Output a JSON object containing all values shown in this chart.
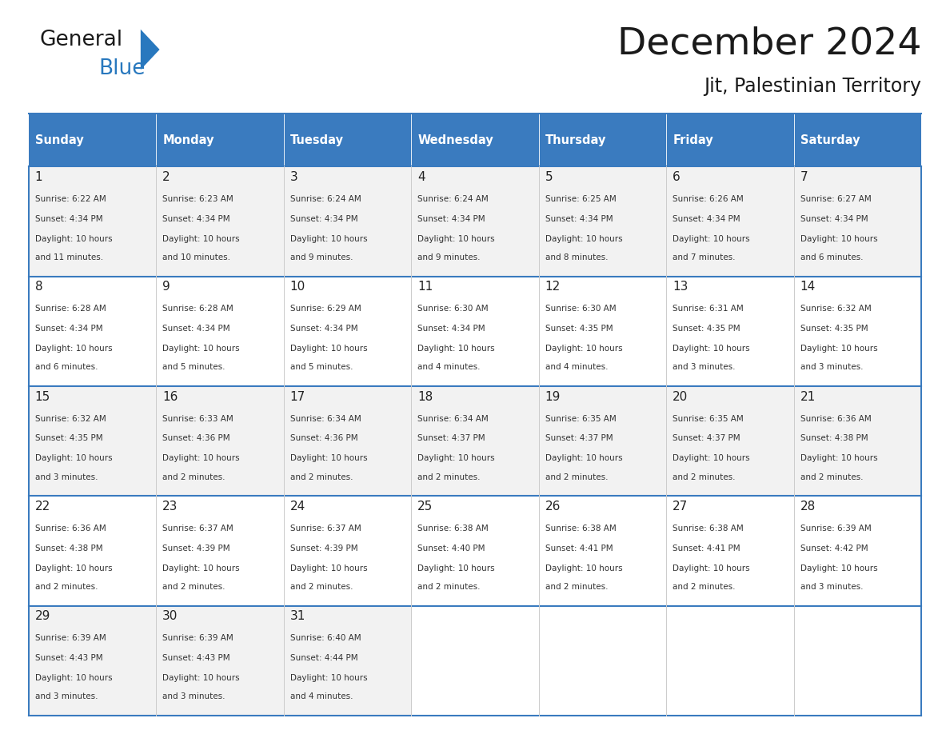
{
  "title": "December 2024",
  "subtitle": "Jit, Palestinian Territory",
  "header_color": "#3A7BBF",
  "header_text_color": "#FFFFFF",
  "cell_bg_color": "#F2F2F2",
  "alt_cell_bg_color": "#FFFFFF",
  "border_color": "#3A7BBF",
  "title_color": "#1a1a1a",
  "subtitle_color": "#1a1a1a",
  "text_color": "#333333",
  "day_number_color": "#222222",
  "day_names": [
    "Sunday",
    "Monday",
    "Tuesday",
    "Wednesday",
    "Thursday",
    "Friday",
    "Saturday"
  ],
  "days": [
    {
      "day": 1,
      "col": 0,
      "row": 0,
      "sunrise": "6:22 AM",
      "sunset": "4:34 PM",
      "daylight": "10 hours and 11 minutes."
    },
    {
      "day": 2,
      "col": 1,
      "row": 0,
      "sunrise": "6:23 AM",
      "sunset": "4:34 PM",
      "daylight": "10 hours and 10 minutes."
    },
    {
      "day": 3,
      "col": 2,
      "row": 0,
      "sunrise": "6:24 AM",
      "sunset": "4:34 PM",
      "daylight": "10 hours and 9 minutes."
    },
    {
      "day": 4,
      "col": 3,
      "row": 0,
      "sunrise": "6:24 AM",
      "sunset": "4:34 PM",
      "daylight": "10 hours and 9 minutes."
    },
    {
      "day": 5,
      "col": 4,
      "row": 0,
      "sunrise": "6:25 AM",
      "sunset": "4:34 PM",
      "daylight": "10 hours and 8 minutes."
    },
    {
      "day": 6,
      "col": 5,
      "row": 0,
      "sunrise": "6:26 AM",
      "sunset": "4:34 PM",
      "daylight": "10 hours and 7 minutes."
    },
    {
      "day": 7,
      "col": 6,
      "row": 0,
      "sunrise": "6:27 AM",
      "sunset": "4:34 PM",
      "daylight": "10 hours and 6 minutes."
    },
    {
      "day": 8,
      "col": 0,
      "row": 1,
      "sunrise": "6:28 AM",
      "sunset": "4:34 PM",
      "daylight": "10 hours and 6 minutes."
    },
    {
      "day": 9,
      "col": 1,
      "row": 1,
      "sunrise": "6:28 AM",
      "sunset": "4:34 PM",
      "daylight": "10 hours and 5 minutes."
    },
    {
      "day": 10,
      "col": 2,
      "row": 1,
      "sunrise": "6:29 AM",
      "sunset": "4:34 PM",
      "daylight": "10 hours and 5 minutes."
    },
    {
      "day": 11,
      "col": 3,
      "row": 1,
      "sunrise": "6:30 AM",
      "sunset": "4:34 PM",
      "daylight": "10 hours and 4 minutes."
    },
    {
      "day": 12,
      "col": 4,
      "row": 1,
      "sunrise": "6:30 AM",
      "sunset": "4:35 PM",
      "daylight": "10 hours and 4 minutes."
    },
    {
      "day": 13,
      "col": 5,
      "row": 1,
      "sunrise": "6:31 AM",
      "sunset": "4:35 PM",
      "daylight": "10 hours and 3 minutes."
    },
    {
      "day": 14,
      "col": 6,
      "row": 1,
      "sunrise": "6:32 AM",
      "sunset": "4:35 PM",
      "daylight": "10 hours and 3 minutes."
    },
    {
      "day": 15,
      "col": 0,
      "row": 2,
      "sunrise": "6:32 AM",
      "sunset": "4:35 PM",
      "daylight": "10 hours and 3 minutes."
    },
    {
      "day": 16,
      "col": 1,
      "row": 2,
      "sunrise": "6:33 AM",
      "sunset": "4:36 PM",
      "daylight": "10 hours and 2 minutes."
    },
    {
      "day": 17,
      "col": 2,
      "row": 2,
      "sunrise": "6:34 AM",
      "sunset": "4:36 PM",
      "daylight": "10 hours and 2 minutes."
    },
    {
      "day": 18,
      "col": 3,
      "row": 2,
      "sunrise": "6:34 AM",
      "sunset": "4:37 PM",
      "daylight": "10 hours and 2 minutes."
    },
    {
      "day": 19,
      "col": 4,
      "row": 2,
      "sunrise": "6:35 AM",
      "sunset": "4:37 PM",
      "daylight": "10 hours and 2 minutes."
    },
    {
      "day": 20,
      "col": 5,
      "row": 2,
      "sunrise": "6:35 AM",
      "sunset": "4:37 PM",
      "daylight": "10 hours and 2 minutes."
    },
    {
      "day": 21,
      "col": 6,
      "row": 2,
      "sunrise": "6:36 AM",
      "sunset": "4:38 PM",
      "daylight": "10 hours and 2 minutes."
    },
    {
      "day": 22,
      "col": 0,
      "row": 3,
      "sunrise": "6:36 AM",
      "sunset": "4:38 PM",
      "daylight": "10 hours and 2 minutes."
    },
    {
      "day": 23,
      "col": 1,
      "row": 3,
      "sunrise": "6:37 AM",
      "sunset": "4:39 PM",
      "daylight": "10 hours and 2 minutes."
    },
    {
      "day": 24,
      "col": 2,
      "row": 3,
      "sunrise": "6:37 AM",
      "sunset": "4:39 PM",
      "daylight": "10 hours and 2 minutes."
    },
    {
      "day": 25,
      "col": 3,
      "row": 3,
      "sunrise": "6:38 AM",
      "sunset": "4:40 PM",
      "daylight": "10 hours and 2 minutes."
    },
    {
      "day": 26,
      "col": 4,
      "row": 3,
      "sunrise": "6:38 AM",
      "sunset": "4:41 PM",
      "daylight": "10 hours and 2 minutes."
    },
    {
      "day": 27,
      "col": 5,
      "row": 3,
      "sunrise": "6:38 AM",
      "sunset": "4:41 PM",
      "daylight": "10 hours and 2 minutes."
    },
    {
      "day": 28,
      "col": 6,
      "row": 3,
      "sunrise": "6:39 AM",
      "sunset": "4:42 PM",
      "daylight": "10 hours and 3 minutes."
    },
    {
      "day": 29,
      "col": 0,
      "row": 4,
      "sunrise": "6:39 AM",
      "sunset": "4:43 PM",
      "daylight": "10 hours and 3 minutes."
    },
    {
      "day": 30,
      "col": 1,
      "row": 4,
      "sunrise": "6:39 AM",
      "sunset": "4:43 PM",
      "daylight": "10 hours and 3 minutes."
    },
    {
      "day": 31,
      "col": 2,
      "row": 4,
      "sunrise": "6:40 AM",
      "sunset": "4:44 PM",
      "daylight": "10 hours and 4 minutes."
    }
  ],
  "n_rows": 5,
  "n_cols": 7,
  "logo_color_general": "#1a1a1a",
  "logo_color_blue": "#2878BE",
  "logo_triangle_color": "#2878BE"
}
